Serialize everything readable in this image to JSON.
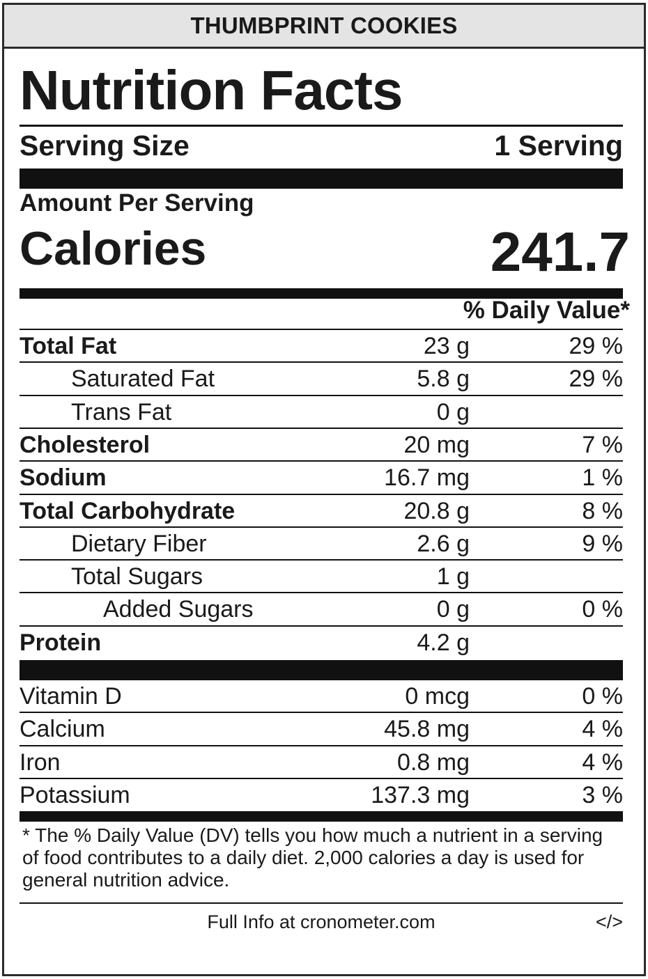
{
  "product_name": "THUMBPRINT COOKIES",
  "heading": "Nutrition Facts",
  "serving": {
    "label": "Serving Size",
    "value": "1 Serving"
  },
  "amount_label": "Amount Per Serving",
  "calories": {
    "label": "Calories",
    "value": "241.7"
  },
  "dv_header": "% Daily Value*",
  "nutrients": [
    {
      "name": "Total Fat",
      "amount": "23 g",
      "dv": "29 %",
      "style": "bold"
    },
    {
      "name": "Saturated Fat",
      "amount": "5.8 g",
      "dv": "29 %",
      "style": "indent1"
    },
    {
      "name": "Trans Fat",
      "amount": "0 g",
      "dv": "",
      "style": "indent1"
    },
    {
      "name": "Cholesterol",
      "amount": "20 mg",
      "dv": "7 %",
      "style": "bold"
    },
    {
      "name": "Sodium",
      "amount": "16.7 mg",
      "dv": "1 %",
      "style": "bold"
    },
    {
      "name": "Total Carbohydrate",
      "amount": "20.8 g",
      "dv": "8 %",
      "style": "bold"
    },
    {
      "name": "Dietary Fiber",
      "amount": "2.6 g",
      "dv": "9 %",
      "style": "indent1"
    },
    {
      "name": "Total Sugars",
      "amount": "1 g",
      "dv": "",
      "style": "indent1"
    },
    {
      "name": "Added Sugars",
      "amount": "0 g",
      "dv": "0 %",
      "style": "indent2"
    },
    {
      "name": "Protein",
      "amount": "4.2 g",
      "dv": "",
      "style": "bold"
    }
  ],
  "vitamins": [
    {
      "name": "Vitamin D",
      "amount": "0 mcg",
      "dv": "0 %"
    },
    {
      "name": "Calcium",
      "amount": "45.8 mg",
      "dv": "4 %"
    },
    {
      "name": "Iron",
      "amount": "0.8 mg",
      "dv": "4 %"
    },
    {
      "name": "Potassium",
      "amount": "137.3 mg",
      "dv": "3 %"
    }
  ],
  "footnote": "* The % Daily Value (DV) tells you how much a nutrient in a serving of food contributes to a daily diet. 2,000 calories a day is used for general nutrition advice.",
  "footer": {
    "info": "Full Info at cronometer.com",
    "embed_code": "</>"
  }
}
